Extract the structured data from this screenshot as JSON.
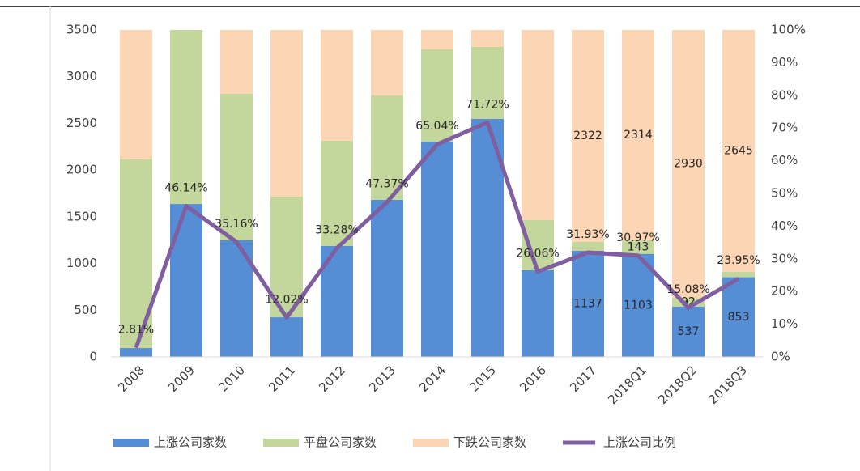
{
  "chart_data": {
    "type": "stacked-bar-line",
    "categories": [
      "2008",
      "2009",
      "2010",
      "2011",
      "2012",
      "2013",
      "2014",
      "2015",
      "2016",
      "2017",
      "2018Q1",
      "2018Q2",
      "2018Q3"
    ],
    "series": [
      {
        "name": "上涨公司家数",
        "color": "#558ed5",
        "values": [
          95,
          1637,
          1248,
          424,
          1187,
          1681,
          2304,
          2547,
          927,
          1137,
          1103,
          537,
          853
        ],
        "value_labels": [
          null,
          null,
          null,
          null,
          null,
          null,
          null,
          null,
          null,
          "1137",
          "1103",
          "537",
          "853"
        ]
      },
      {
        "name": "平盘公司家数",
        "color": "#c3d69b",
        "values": [
          2019,
          1863,
          1568,
          1291,
          1126,
          1117,
          988,
          771,
          537,
          93,
          143,
          92,
          57
        ],
        "value_labels": [
          null,
          null,
          null,
          null,
          null,
          null,
          null,
          null,
          null,
          null,
          "143",
          "92",
          null
        ]
      },
      {
        "name": "下跌公司家数",
        "color": "#fcd5b5",
        "values": [
          1386,
          0,
          684,
          1785,
          1187,
          702,
          208,
          182,
          2036,
          2322,
          2314,
          2930,
          2645
        ],
        "value_labels": [
          null,
          null,
          null,
          null,
          null,
          null,
          null,
          null,
          null,
          "2322",
          "2314",
          "2930",
          "2645"
        ]
      },
      {
        "name": "上涨公司比例",
        "color": "#7f5f9f",
        "axis": "y2",
        "type": "line",
        "values": [
          2.81,
          46.14,
          35.16,
          12.02,
          33.28,
          47.37,
          65.04,
          71.72,
          26.06,
          31.93,
          30.97,
          15.08,
          23.95
        ],
        "value_labels": [
          "2.81%",
          "46.14%",
          "35.16%",
          "12.02%",
          "33.28%",
          "47.37%",
          "65.04%",
          "71.72%",
          "26.06%",
          "31.93%",
          "30.97%",
          "15.08%",
          "23.95%"
        ]
      }
    ],
    "ylim": [
      0,
      3500
    ],
    "yticks": [
      0,
      500,
      1000,
      1500,
      2000,
      2500,
      3000,
      3500
    ],
    "y2lim": [
      0,
      100
    ],
    "y2ticks": [
      {
        "value": 0,
        "label": "0%"
      },
      {
        "value": 10,
        "label": "10%"
      },
      {
        "value": 20,
        "label": "20%"
      },
      {
        "value": 30,
        "label": "30%"
      },
      {
        "value": 40,
        "label": "40%"
      },
      {
        "value": 50,
        "label": "50%"
      },
      {
        "value": 60,
        "label": "60%"
      },
      {
        "value": 70,
        "label": "70%"
      },
      {
        "value": 80,
        "label": "80%"
      },
      {
        "value": 90,
        "label": "90%"
      },
      {
        "value": 100,
        "label": "100%"
      }
    ],
    "legend": "bottom"
  }
}
